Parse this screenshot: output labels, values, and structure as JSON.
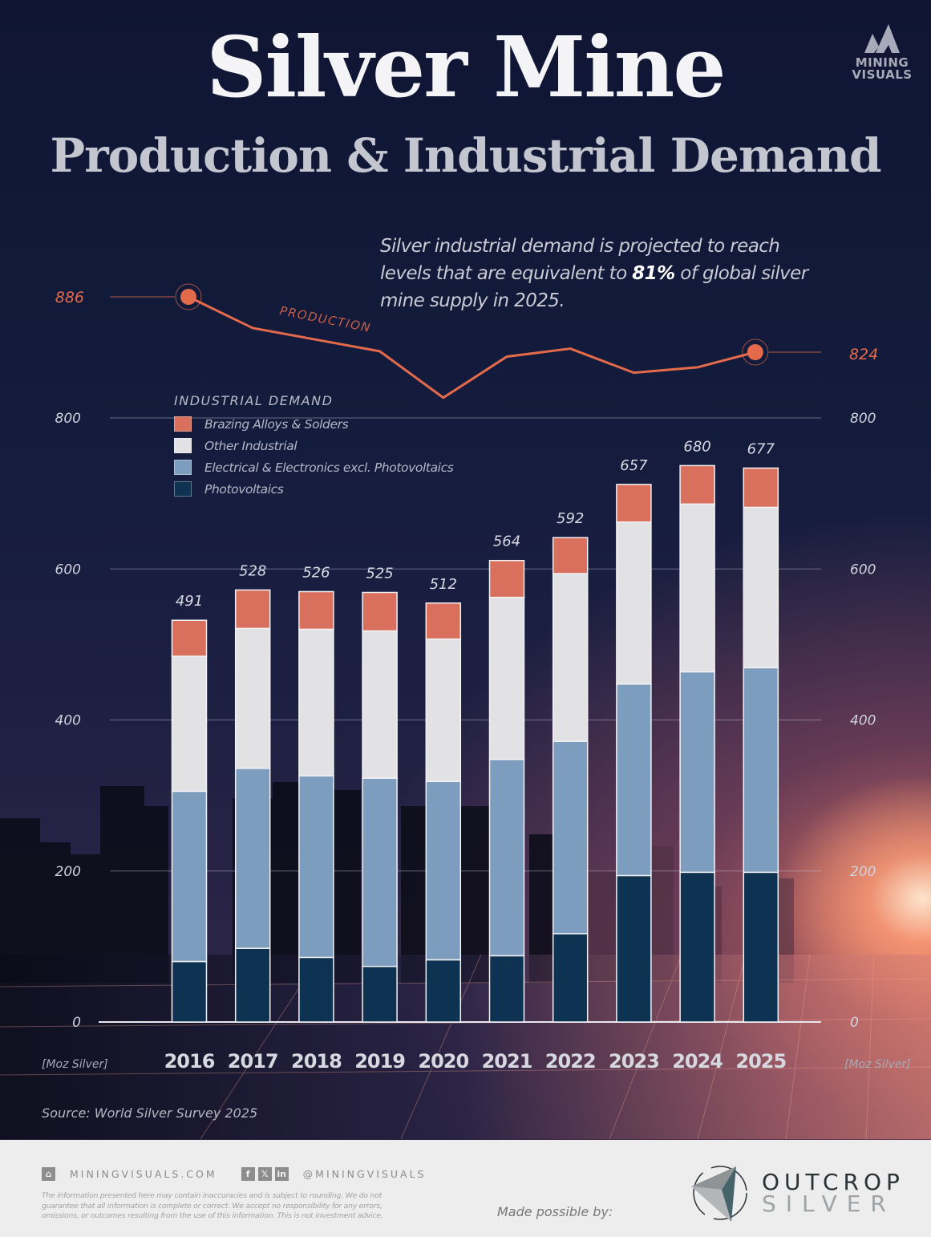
{
  "header": {
    "title": "Silver Mine",
    "subtitle": "Production & Industrial Demand",
    "brand_logo": "MINING VISUALS",
    "brand_logo_line1": "MINING",
    "brand_logo_line2": "VISUALS"
  },
  "annotation": {
    "pre": "Silver industrial demand is projected to reach levels that are equivalent to ",
    "highlight": "81%",
    "post": " of global silver mine supply in 2025."
  },
  "colors": {
    "brazing": "#d9705d",
    "other": "#e2e2e4",
    "electrical": "#7c9dbd",
    "photovoltaics": "#0e3352",
    "production": "#e46a4c"
  },
  "chart_data": {
    "type": "bar",
    "stacked": true,
    "title": "Silver Mine Production & Industrial Demand",
    "ylabel": "[Moz Silver]",
    "ylim": [
      0,
      800
    ],
    "yticks": [
      0,
      200,
      400,
      600,
      800
    ],
    "grid": true,
    "categories": [
      "2016",
      "2017",
      "2018",
      "2019",
      "2020",
      "2021",
      "2022",
      "2023",
      "2024",
      "2025"
    ],
    "legend_title": "INDUSTRIAL DEMAND",
    "legend_position": "top-left",
    "series": [
      {
        "name": "Photovoltaics",
        "key": "photovoltaics",
        "values": [
          74,
          90,
          79,
          68,
          76,
          81,
          108,
          179,
          183,
          183
        ]
      },
      {
        "name": "Electrical & Electronics excl. Photovoltaics",
        "key": "electrical",
        "values": [
          208,
          220,
          222,
          230,
          218,
          240,
          235,
          234,
          245,
          250
        ]
      },
      {
        "name": "Other Industrial",
        "key": "other",
        "values": [
          165,
          171,
          179,
          180,
          174,
          198,
          205,
          198,
          205,
          196
        ]
      },
      {
        "name": "Brazing Alloys & Solders",
        "key": "brazing",
        "values": [
          44,
          47,
          46,
          47,
          44,
          45,
          44,
          46,
          47,
          48
        ]
      }
    ],
    "legend_order": [
      "brazing",
      "other",
      "electrical",
      "photovoltaics"
    ],
    "totals": [
      491,
      528,
      526,
      525,
      512,
      564,
      592,
      657,
      680,
      677
    ],
    "line_series": {
      "name": "PRODUCTION",
      "values": [
        886,
        851,
        838,
        825,
        773,
        819,
        828,
        801,
        807,
        824
      ],
      "labeled_points": {
        "first": "886",
        "last": "824"
      }
    }
  },
  "axis": {
    "unit_left": "[Moz Silver]",
    "unit_right": "[Moz Silver]"
  },
  "source": "Source:  World Silver Survey 2025",
  "footer": {
    "website": "MININGVISUALS.COM",
    "social_handle": "@MININGVISUALS",
    "social_icons": [
      "facebook-icon",
      "x-icon",
      "linkedin-icon"
    ],
    "disclaimer": "The information presented here may contain inaccuracies and is subject to rounding. We do not guarantee that all information is complete or correct. We accept no responsibility for any errors, omissions, or outcomes resulting from the use of this information. This is not investment advice.",
    "made_possible_by": "Made possible by:",
    "sponsor_line1": "OUTCROP",
    "sponsor_line2": "SILVER"
  }
}
